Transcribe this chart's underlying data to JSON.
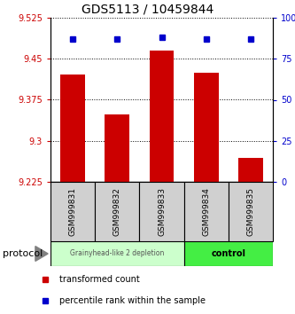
{
  "title": "GDS5113 / 10459844",
  "samples": [
    "GSM999831",
    "GSM999832",
    "GSM999833",
    "GSM999834",
    "GSM999835"
  ],
  "bar_values": [
    9.422,
    9.348,
    9.465,
    9.425,
    9.268
  ],
  "percentile_values": [
    87,
    87,
    88,
    87,
    87
  ],
  "y_min": 9.225,
  "y_max": 9.525,
  "y_ticks": [
    9.225,
    9.3,
    9.375,
    9.45,
    9.525
  ],
  "y_tick_labels": [
    "9.225",
    "9.3",
    "9.375",
    "9.45",
    "9.525"
  ],
  "y2_ticks": [
    0,
    25,
    50,
    75,
    100
  ],
  "y2_tick_labels": [
    "0",
    "25",
    "50",
    "75",
    "100%"
  ],
  "bar_color": "#cc0000",
  "dot_color": "#0000cc",
  "group1_label": "Grainyhead-like 2 depletion",
  "group2_label": "control",
  "group1_color": "#ccffcc",
  "group2_color": "#44ee44",
  "group1_count": 3,
  "group2_count": 2,
  "protocol_label": "protocol",
  "legend_bar_label": "transformed count",
  "legend_dot_label": "percentile rank within the sample"
}
